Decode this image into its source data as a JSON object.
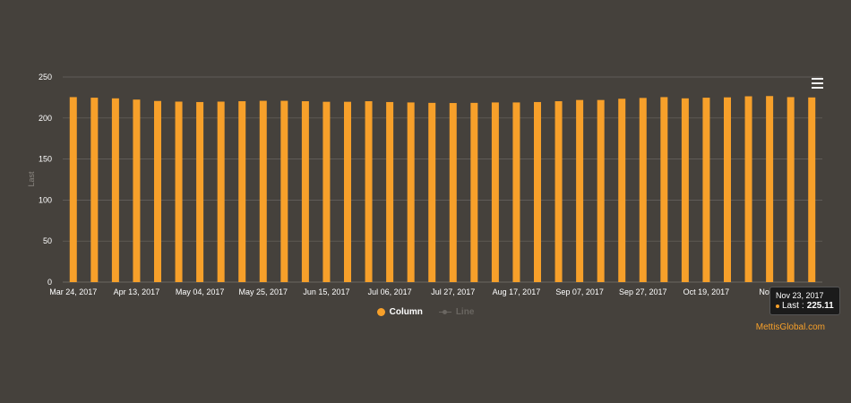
{
  "colors": {
    "background": "#45413c",
    "bar": "#f7a02a",
    "grid": "#6a6661",
    "axis_text": "#ffffff",
    "legend_inactive": "#6a6661",
    "credit": "#f7a02a"
  },
  "chart_data": {
    "type": "bar",
    "ylabel": "Last",
    "ylim": [
      0,
      250
    ],
    "yticks": [
      0,
      50,
      100,
      150,
      200,
      250
    ],
    "grid": true,
    "x_tick_labels": [
      "Mar 24, 2017",
      "Apr 13, 2017",
      "May 04, 2017",
      "May 25, 2017",
      "Jun 15, 2017",
      "Jul 06, 2017",
      "Jul 27, 2017",
      "Aug 17, 2017",
      "Sep 07, 2017",
      "Sep 27, 2017",
      "Oct 19, 2017",
      "Nov 0"
    ],
    "series": [
      {
        "name": "Column",
        "values": [
          225.5,
          224.8,
          224.0,
          222.5,
          220.8,
          220.0,
          219.5,
          220.0,
          220.5,
          221.0,
          221.0,
          220.5,
          219.8,
          219.8,
          220.5,
          219.5,
          219.0,
          218.5,
          218.3,
          218.5,
          219.0,
          219.0,
          219.5,
          220.5,
          222.0,
          222.0,
          223.5,
          224.5,
          225.5,
          224.0,
          224.8,
          225.2,
          226.5,
          226.8,
          225.5,
          225.11
        ]
      },
      {
        "name": "Line",
        "values": [],
        "visible": false
      }
    ],
    "legend": {
      "placement": "bottom-center",
      "items": [
        "Column",
        "Line"
      ]
    },
    "tooltip": {
      "date": "Nov 23, 2017",
      "series": "Last",
      "value": "225.11"
    }
  },
  "ui": {
    "menu_icon": "hamburger-menu-icon",
    "credit": "MettisGlobal.com"
  }
}
